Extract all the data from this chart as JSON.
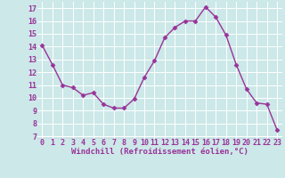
{
  "x": [
    0,
    1,
    2,
    3,
    4,
    5,
    6,
    7,
    8,
    9,
    10,
    11,
    12,
    13,
    14,
    15,
    16,
    17,
    18,
    19,
    20,
    21,
    22,
    23
  ],
  "y": [
    14.1,
    12.6,
    11.0,
    10.8,
    10.2,
    10.4,
    9.5,
    9.2,
    9.2,
    9.9,
    11.6,
    12.9,
    14.7,
    15.5,
    16.0,
    16.0,
    17.1,
    16.3,
    14.9,
    12.6,
    10.7,
    9.6,
    9.5,
    7.5
  ],
  "line_color": "#993399",
  "marker": "D",
  "markersize": 2.5,
  "linewidth": 1.0,
  "bg_color": "#cce8e8",
  "grid_color": "#ffffff",
  "xlabel": "Windchill (Refroidissement éolien,°C)",
  "xlabel_color": "#993399",
  "xlabel_fontsize": 6.5,
  "tick_color": "#993399",
  "tick_fontsize": 6.0,
  "ylim": [
    6.8,
    17.5
  ],
  "yticks": [
    7,
    8,
    9,
    10,
    11,
    12,
    13,
    14,
    15,
    16,
    17
  ],
  "xticks": [
    0,
    1,
    2,
    3,
    4,
    5,
    6,
    7,
    8,
    9,
    10,
    11,
    12,
    13,
    14,
    15,
    16,
    17,
    18,
    19,
    20,
    21,
    22,
    23
  ],
  "xlim": [
    -0.5,
    23.5
  ]
}
